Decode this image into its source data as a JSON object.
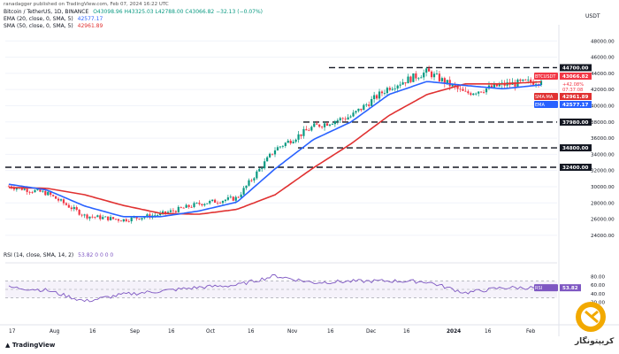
{
  "header": {
    "author": "ranadagger published on TradingView.com, Feb 07, 2024 16:22 UTC",
    "symbol": "Bitcoin / TetherUS, 1D, BINANCE",
    "ohlc": "O43098.96  H43325.03  L42788.00  C43066.82  −32.13 (−0.07%)",
    "ema_label": "EMA (20, close, 0, SMA, 5)",
    "ema_value": "42577.17",
    "sma_label": "SMA (50, close, 0, SMA, 5)",
    "sma_value": "42961.89",
    "rsi_label": "RSI (14, close, SMA, 14, 2)",
    "rsi_values": "53.82  0  0  0  0"
  },
  "axis": {
    "currency": "USDT",
    "price_ticks": [
      "48000.00",
      "46000.00",
      "44000.00",
      "42000.00",
      "40000.00",
      "38000.00",
      "36000.00",
      "34000.00",
      "32000.00",
      "30000.00",
      "28000.00",
      "26000.00",
      "24000.00"
    ],
    "rsi_ticks": [
      "80.00",
      "60.00",
      "40.00",
      "20.00"
    ],
    "date_labels": [
      "17",
      "Aug",
      "16",
      "Sep",
      "16",
      "Oct",
      "16",
      "Nov",
      "16",
      "Dec",
      "16",
      "2024",
      "16",
      "Feb"
    ]
  },
  "badges": {
    "btc": {
      "label": "BTCUSDT",
      "value": "43066.82",
      "sub1": "+42.08%",
      "sub2": "07:37:08"
    },
    "sma": {
      "label": "SMA:MA",
      "value": "42961.89"
    },
    "ema": {
      "label": "EMA",
      "value": "42577.17"
    },
    "levels": [
      "44700.00",
      "37980.00",
      "34800.00",
      "32400.00"
    ],
    "rsi": {
      "label": "RSI",
      "value": "53.82"
    }
  },
  "colors": {
    "up": "#089981",
    "down": "#f23645",
    "ema": "#2962ff",
    "sma": "#e03131",
    "rsi": "#7e57c2",
    "level": "#131722",
    "badge_btc": "#f23645",
    "badge_sma": "#e03131",
    "badge_ema": "#2962ff"
  },
  "branding": {
    "tradingview": "TradingView",
    "watermark": "کریپتونگار"
  },
  "chart_data": {
    "type": "candlestick",
    "title": "Bitcoin / TetherUS, 1D, BINANCE",
    "ylim": [
      23000,
      50000
    ],
    "levels": [
      44700,
      37980,
      34800,
      32400
    ],
    "x": [
      "Jul 17",
      "Aug 1",
      "Aug 16",
      "Sep 1",
      "Sep 16",
      "Oct 1",
      "Oct 16",
      "Nov 1",
      "Nov 16",
      "Dec 1",
      "Dec 16",
      "Jan 1",
      "Jan 16",
      "Feb 1",
      "Feb 7"
    ],
    "close": [
      30050,
      29200,
      26400,
      25900,
      26600,
      27900,
      28600,
      34600,
      37400,
      38700,
      42300,
      44200,
      41500,
      42600,
      43066.82
    ],
    "ema20": [
      30300,
      29600,
      27600,
      26300,
      26300,
      27000,
      28100,
      32200,
      35800,
      38000,
      41400,
      43000,
      42500,
      42100,
      42577.17
    ],
    "sma50": [
      29900,
      29800,
      29000,
      27700,
      26700,
      26600,
      27200,
      29000,
      32300,
      35300,
      38800,
      41400,
      42700,
      42700,
      42961.89
    ],
    "rsi": [
      55,
      48,
      22,
      38,
      46,
      55,
      60,
      82,
      66,
      69,
      70,
      68,
      42,
      54,
      53.82
    ],
    "rsi_ylim": [
      0,
      100
    ]
  }
}
